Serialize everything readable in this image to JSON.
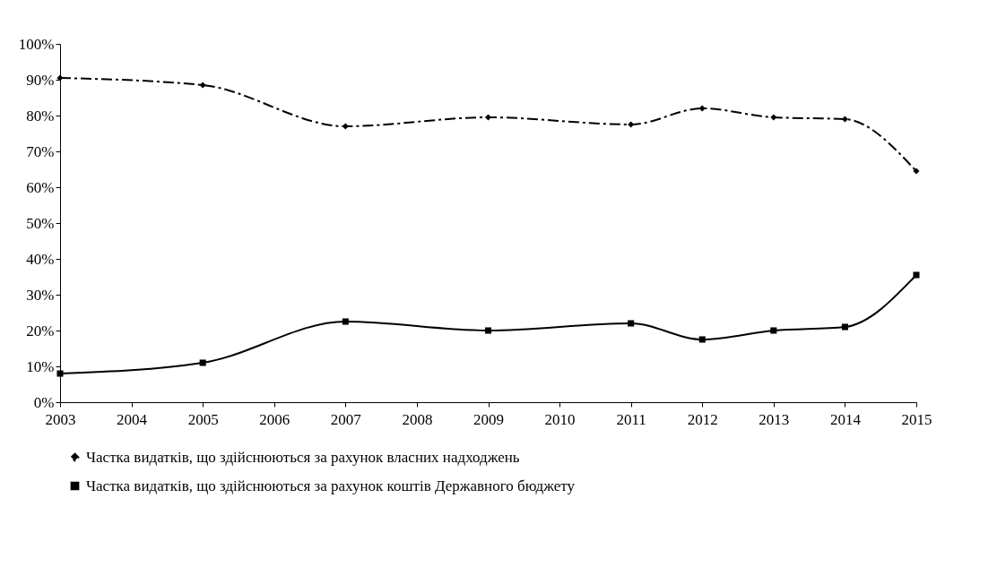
{
  "chart_data": {
    "type": "line",
    "xlim": [
      2003,
      2015
    ],
    "xticks": [
      2003,
      2004,
      2005,
      2006,
      2007,
      2008,
      2009,
      2010,
      2011,
      2012,
      2013,
      2014,
      2015
    ],
    "ylim": [
      0,
      100
    ],
    "yticks": [
      {
        "value": 0,
        "label": "0%"
      },
      {
        "value": 10,
        "label": "10%"
      },
      {
        "value": 20,
        "label": "20%"
      },
      {
        "value": 30,
        "label": "30%"
      },
      {
        "value": 40,
        "label": "40%"
      },
      {
        "value": 50,
        "label": "50%"
      },
      {
        "value": 60,
        "label": "60%"
      },
      {
        "value": 70,
        "label": "70%"
      },
      {
        "value": 80,
        "label": "80%"
      },
      {
        "value": 90,
        "label": "90%"
      },
      {
        "value": 100,
        "label": "100%"
      }
    ],
    "grid": false,
    "legend": "bottom",
    "series": [
      {
        "name": "Частка видатків, що здійснюються за рахунок власних надходжень",
        "color": "#000000",
        "marker": "diamond",
        "line_style": "dashed",
        "x": [
          2003,
          2005,
          2007,
          2009,
          2011,
          2012,
          2013,
          2014,
          2015
        ],
        "values": [
          90.5,
          88.5,
          77,
          79.5,
          77.5,
          82,
          79.5,
          79,
          64.5
        ]
      },
      {
        "name": "Частка видатків, що здійснюються за рахунок коштів Державного бюджету",
        "color": "#000000",
        "marker": "square",
        "line_style": "solid",
        "x": [
          2003,
          2005,
          2007,
          2009,
          2011,
          2012,
          2013,
          2014,
          2015
        ],
        "values": [
          8,
          11,
          22.5,
          20,
          22,
          17.5,
          20,
          21,
          35.5
        ]
      }
    ]
  }
}
